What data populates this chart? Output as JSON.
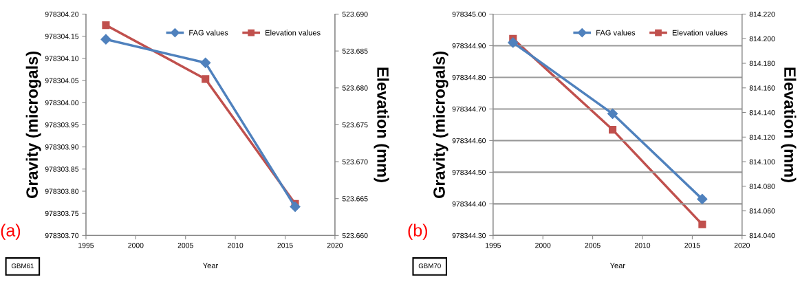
{
  "chart_data": [
    {
      "type": "line",
      "xlabel": "Year",
      "ylabel": "Gravity (microgals)",
      "y2label": "Elevation (mm)",
      "annotations": [
        "(a)",
        "GBM61"
      ],
      "legend": "top right",
      "grid": false,
      "line_style": "solid",
      "x": [
        1997,
        2007,
        2016
      ],
      "xlim": [
        1995,
        2020
      ],
      "xticks": [
        1995,
        2000,
        2005,
        2010,
        2015,
        2020
      ],
      "ylim": [
        978303.7,
        978304.2
      ],
      "yticks": [
        {
          "value": 978303.7,
          "label": "978303.70"
        },
        {
          "value": 978303.75,
          "label": "978303.75"
        },
        {
          "value": 978303.8,
          "label": "978303.80"
        },
        {
          "value": 978303.85,
          "label": "978303.85"
        },
        {
          "value": 978303.9,
          "label": "978303.90"
        },
        {
          "value": 978303.95,
          "label": "978303.95"
        },
        {
          "value": 978304.0,
          "label": "978304.00"
        },
        {
          "value": 978304.05,
          "label": "978304.05"
        },
        {
          "value": 978304.1,
          "label": "978304.10"
        },
        {
          "value": 978304.15,
          "label": "978304.15"
        },
        {
          "value": 978304.2,
          "label": "978304.20"
        }
      ],
      "y2lim": [
        523.66,
        523.69
      ],
      "y2ticks": [
        {
          "value": 523.66,
          "label": "523.660"
        },
        {
          "value": 523.665,
          "label": "523.665"
        },
        {
          "value": 523.67,
          "label": "523.670"
        },
        {
          "value": 523.675,
          "label": "523.675"
        },
        {
          "value": 523.68,
          "label": "523.680"
        },
        {
          "value": 523.685,
          "label": "523.685"
        },
        {
          "value": 523.69,
          "label": "523.690"
        }
      ],
      "series": [
        {
          "name": "FAG values",
          "color": "#4f81bd",
          "marker": "diamond",
          "values": [
            978304.143,
            978304.09,
            978303.765
          ]
        },
        {
          "name": "Elevation values",
          "color": "#c0504d",
          "marker": "square",
          "axis": "y2",
          "values": [
            523.6885,
            523.6812,
            523.6643
          ]
        }
      ]
    },
    {
      "type": "line",
      "xlabel": "Year",
      "ylabel": "Gravity (microgals)",
      "y2label": "Elevation (mm)",
      "annotations": [
        "(b)",
        "GBM70"
      ],
      "legend": "top right",
      "grid": "y",
      "line_style": "solid",
      "x": [
        1997,
        2007,
        2016
      ],
      "xlim": [
        1995,
        2020
      ],
      "xticks": [
        1995,
        2000,
        2005,
        2010,
        2015,
        2020
      ],
      "ylim": [
        978344.3,
        978345.0
      ],
      "yticks": [
        {
          "value": 978344.3,
          "label": "978344.30"
        },
        {
          "value": 978344.4,
          "label": "978344.40"
        },
        {
          "value": 978344.5,
          "label": "978344.50"
        },
        {
          "value": 978344.6,
          "label": "978344.60"
        },
        {
          "value": 978344.7,
          "label": "978344.70"
        },
        {
          "value": 978344.8,
          "label": "978344.80"
        },
        {
          "value": 978344.9,
          "label": "978344.90"
        },
        {
          "value": 978345.0,
          "label": "978345.00"
        }
      ],
      "y2lim": [
        814.04,
        814.22
      ],
      "y2ticks": [
        {
          "value": 814.04,
          "label": "814.040"
        },
        {
          "value": 814.06,
          "label": "814.060"
        },
        {
          "value": 814.08,
          "label": "814.080"
        },
        {
          "value": 814.1,
          "label": "814.100"
        },
        {
          "value": 814.12,
          "label": "814.120"
        },
        {
          "value": 814.14,
          "label": "814.140"
        },
        {
          "value": 814.16,
          "label": "814.160"
        },
        {
          "value": 814.18,
          "label": "814.180"
        },
        {
          "value": 814.2,
          "label": "814.200"
        },
        {
          "value": 814.22,
          "label": "814.220"
        }
      ],
      "series": [
        {
          "name": "FAG values",
          "color": "#4f81bd",
          "marker": "diamond",
          "values": [
            978344.91,
            978344.685,
            978344.415
          ]
        },
        {
          "name": "Elevation values",
          "color": "#c0504d",
          "marker": "square",
          "axis": "y2",
          "values": [
            814.2,
            814.126,
            814.049
          ]
        }
      ]
    }
  ]
}
